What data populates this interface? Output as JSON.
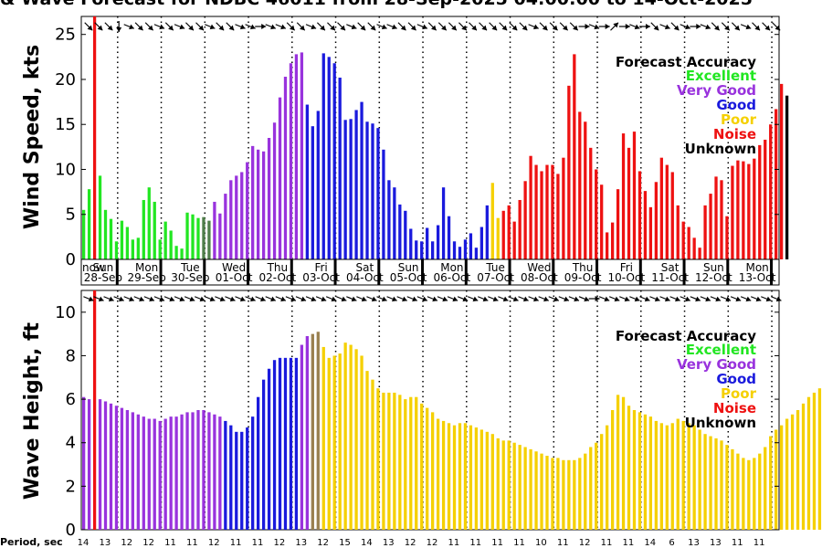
{
  "title": "& Wave Forecast for NDBC 46011 from 28-Sep-2025 04:00:00 to 14-Oct-2025",
  "accuracy_colors": {
    "Excellent": "#22e622",
    "Very Good": "#9933dd",
    "Good": "#1a1add",
    "Poor": "#f5d000",
    "Noise": "#ee1111",
    "Unknown": "#000000",
    "Olive": "#4f7f4a",
    "Purple": "#6a2ec0",
    "Brown": "#9a8050"
  },
  "legend": {
    "title": "Forecast Accuracy",
    "entries": [
      "Excellent",
      "Very Good",
      "Good",
      "Poor",
      "Noise",
      "Unknown"
    ]
  },
  "now_label": "now",
  "day_labels": [
    {
      "dow": "Sun",
      "date": "28-Sep"
    },
    {
      "dow": "Mon",
      "date": "29-Sep"
    },
    {
      "dow": "Tue",
      "date": "30-Sep"
    },
    {
      "dow": "Wed",
      "date": "01-Oct"
    },
    {
      "dow": "Thu",
      "date": "02-Oct"
    },
    {
      "dow": "Fri",
      "date": "03-Oct"
    },
    {
      "dow": "Sat",
      "date": "04-Oct"
    },
    {
      "dow": "Sun",
      "date": "05-Oct"
    },
    {
      "dow": "Mon",
      "date": "06-Oct"
    },
    {
      "dow": "Tue",
      "date": "07-Oct"
    },
    {
      "dow": "Wed",
      "date": "08-Oct"
    },
    {
      "dow": "Thu",
      "date": "09-Oct"
    },
    {
      "dow": "Fri",
      "date": "10-Oct"
    },
    {
      "dow": "Sat",
      "date": "11-Oct"
    },
    {
      "dow": "Sun",
      "date": "12-Oct"
    },
    {
      "dow": "Mon",
      "date": "13-Oct"
    }
  ],
  "period_label": "Period, sec",
  "periods": [
    14,
    13,
    12,
    12,
    11,
    11,
    12,
    11,
    11,
    12,
    13,
    12,
    15,
    14,
    13,
    12,
    12,
    11,
    11,
    11,
    11,
    10,
    11,
    12,
    11,
    11,
    14,
    6,
    13,
    13,
    11,
    11
  ],
  "chart_data": [
    {
      "type": "bar",
      "ylabel": "Wind Speed, kts",
      "ylim": [
        0,
        27
      ],
      "yticks": [
        0,
        5,
        10,
        15,
        20,
        25
      ],
      "x_unit": "hours from 28-Sep 04:00",
      "xlim": [
        0,
        384
      ],
      "bar_step_hours": 3,
      "now_hours": 6,
      "values": [
        5.5,
        7.8,
        0,
        9.3,
        5.5,
        4.5,
        2.0,
        4.3,
        3.6,
        2.2,
        2.4,
        6.6,
        8.0,
        6.4,
        2.2,
        4.2,
        3.2,
        1.5,
        1.2,
        5.2,
        5.0,
        4.6,
        4.7,
        4.3,
        6.4,
        5.1,
        7.3,
        8.8,
        9.3,
        9.7,
        10.8,
        12.6,
        12.2,
        12.0,
        13.5,
        15.2,
        18.0,
        20.3,
        21.8,
        22.8,
        23.0,
        17.2,
        14.8,
        16.5,
        22.9,
        22.5,
        21.8,
        20.2,
        15.5,
        15.6,
        16.6,
        17.5,
        15.3,
        15.1,
        14.6,
        12.2,
        8.8,
        8.0,
        6.1,
        5.4,
        3.4,
        2.1,
        2.0,
        3.5,
        2.0,
        3.8,
        8.0,
        4.8,
        2.0,
        1.4,
        2.2,
        2.9,
        1.3,
        3.6,
        6.0,
        8.5,
        4.6,
        5.4,
        6.0,
        4.2,
        6.6,
        8.7,
        11.5,
        10.5,
        9.8,
        10.5,
        10.5,
        9.5,
        11.3,
        19.3,
        22.8,
        16.4,
        15.3,
        12.4,
        10.0,
        8.3,
        3.0,
        4.1,
        7.8,
        14.0,
        12.4,
        14.2,
        9.8,
        7.6,
        5.8,
        8.6,
        11.3,
        10.5,
        9.7,
        6.0,
        4.2,
        3.6,
        2.4,
        1.3,
        6.0,
        7.3,
        9.2,
        8.8,
        4.8,
        10.4,
        11.0,
        10.9,
        10.6,
        11.2,
        12.7,
        13.3,
        15.0,
        16.7,
        19.5,
        18.2
      ],
      "colors": [
        "G",
        "G",
        "R",
        "G",
        "G",
        "G",
        "G",
        "G",
        "G",
        "G",
        "G",
        "G",
        "G",
        "G",
        "G",
        "G",
        "G",
        "G",
        "G",
        "G",
        "G",
        "G",
        "O",
        "O",
        "V",
        "V",
        "V",
        "V",
        "V",
        "V",
        "V",
        "V",
        "V",
        "V",
        "V",
        "V",
        "V",
        "V",
        "V",
        "V",
        "V",
        "B",
        "B",
        "B",
        "B",
        "B",
        "B",
        "B",
        "B",
        "B",
        "B",
        "B",
        "B",
        "B",
        "B",
        "B",
        "B",
        "B",
        "B",
        "B",
        "B",
        "B",
        "B",
        "B",
        "B",
        "B",
        "B",
        "B",
        "B",
        "B",
        "B",
        "B",
        "B",
        "B",
        "B",
        "P",
        "P",
        "R",
        "R",
        "R",
        "R",
        "R",
        "R",
        "R",
        "R",
        "R",
        "R",
        "R",
        "R",
        "R",
        "R",
        "R",
        "R",
        "R",
        "R",
        "R",
        "R",
        "R",
        "R",
        "R",
        "R",
        "R",
        "R",
        "R",
        "R",
        "R",
        "R",
        "R",
        "R",
        "R",
        "R",
        "R",
        "R",
        "R",
        "R",
        "R",
        "R",
        "R",
        "R",
        "R",
        "R",
        "R",
        "R",
        "R",
        "R",
        "R",
        "R",
        "R",
        "R"
      ],
      "direction_arrows_deg": [
        135,
        135,
        135,
        180,
        112,
        135,
        135,
        112,
        135,
        112,
        135,
        135,
        112,
        135,
        135,
        112,
        112,
        90,
        112,
        112,
        135,
        135,
        112,
        135,
        135,
        135,
        112,
        135,
        135,
        112,
        112,
        135,
        135,
        112,
        135,
        135,
        135,
        135,
        135,
        135,
        135,
        135,
        135,
        135,
        112,
        135,
        135,
        135,
        135,
        90,
        112,
        90,
        45,
        90,
        112,
        90,
        135,
        112,
        135,
        112,
        90,
        112,
        135,
        135,
        135,
        112,
        135,
        135,
        135
      ],
      "noise_spike": 27
    },
    {
      "type": "bar",
      "ylabel": "Wave Height, ft",
      "ylim": [
        0,
        11
      ],
      "yticks": [
        0,
        2,
        4,
        6,
        8,
        10
      ],
      "x_unit": "hours from 28-Sep 04:00",
      "xlim": [
        0,
        384
      ],
      "bar_step_hours": 3,
      "now_hours": 6,
      "values": [
        6.1,
        6.0,
        0,
        6.0,
        5.9,
        5.8,
        5.7,
        5.6,
        5.5,
        5.4,
        5.3,
        5.2,
        5.1,
        5.1,
        5.0,
        5.1,
        5.2,
        5.2,
        5.3,
        5.4,
        5.4,
        5.5,
        5.5,
        5.4,
        5.3,
        5.2,
        5.0,
        4.8,
        4.5,
        4.5,
        4.7,
        5.2,
        6.1,
        6.9,
        7.4,
        7.8,
        7.9,
        7.9,
        7.9,
        7.9,
        8.5,
        8.9,
        9.0,
        9.1,
        8.4,
        7.9,
        8.0,
        8.1,
        8.6,
        8.5,
        8.3,
        8.0,
        7.3,
        6.9,
        6.5,
        6.3,
        6.3,
        6.3,
        6.2,
        6.0,
        6.1,
        6.1,
        5.8,
        5.6,
        5.4,
        5.1,
        5.0,
        4.9,
        4.8,
        4.9,
        4.9,
        4.8,
        4.7,
        4.6,
        4.5,
        4.4,
        4.2,
        4.1,
        4.1,
        4.0,
        3.9,
        3.8,
        3.7,
        3.6,
        3.5,
        3.4,
        3.3,
        3.3,
        3.2,
        3.2,
        3.2,
        3.3,
        3.5,
        3.8,
        4.0,
        4.4,
        4.8,
        5.5,
        6.2,
        6.1,
        5.7,
        5.5,
        5.4,
        5.3,
        5.2,
        5.0,
        4.9,
        4.8,
        4.9,
        5.1,
        5.0,
        4.9,
        4.8,
        4.6,
        4.4,
        4.3,
        4.2,
        4.1,
        3.9,
        3.7,
        3.5,
        3.3,
        3.2,
        3.3,
        3.5,
        3.8,
        4.3,
        4.6,
        4.8,
        5.1,
        5.3,
        5.5,
        5.8,
        6.1,
        6.3,
        6.5,
        7.0,
        6.6
      ],
      "colors": [
        "V",
        "V",
        "R",
        "V",
        "V",
        "V",
        "V",
        "V",
        "V",
        "V",
        "V",
        "V",
        "V",
        "V",
        "V",
        "V",
        "V",
        "V",
        "V",
        "V",
        "V",
        "V",
        "V",
        "V",
        "V",
        "V",
        "B",
        "B",
        "B",
        "B",
        "B",
        "B",
        "B",
        "B",
        "B",
        "B",
        "B",
        "B",
        "B",
        "B",
        "V",
        "V",
        "W",
        "W",
        "P",
        "P",
        "P",
        "P",
        "P",
        "P",
        "P",
        "P",
        "P",
        "P",
        "P",
        "P",
        "P",
        "P",
        "P",
        "P",
        "P",
        "P",
        "P",
        "P",
        "P",
        "P",
        "P",
        "P",
        "P",
        "P",
        "P",
        "P",
        "P",
        "P",
        "P",
        "P",
        "P",
        "P",
        "P",
        "P",
        "P",
        "P",
        "P",
        "P",
        "P",
        "P",
        "P",
        "P",
        "P",
        "P",
        "P",
        "P",
        "P",
        "P",
        "P",
        "P",
        "P",
        "P",
        "P",
        "P",
        "P",
        "P",
        "P",
        "P",
        "P",
        "P",
        "P",
        "P",
        "P",
        "P",
        "P",
        "P",
        "P",
        "P",
        "P",
        "P",
        "P",
        "P",
        "P",
        "P",
        "P",
        "P",
        "P",
        "P",
        "P",
        "P",
        "P",
        "P",
        "P",
        "P",
        "P",
        "P",
        "P",
        "P",
        "P",
        "P",
        "P",
        "P",
        "P",
        "P"
      ],
      "direction_arrows_deg": [
        112,
        112,
        112,
        112,
        112,
        112,
        112,
        112,
        112,
        112,
        112,
        112,
        112,
        112,
        112,
        112,
        112,
        112,
        112,
        112,
        112,
        112,
        112,
        112,
        112,
        112,
        112,
        112,
        112,
        112,
        112,
        112,
        112,
        112,
        112,
        112,
        112,
        112,
        112,
        112,
        112,
        112,
        112,
        112,
        112,
        112,
        112,
        112,
        112,
        112,
        90,
        112,
        112,
        112,
        112,
        112,
        112,
        112,
        112,
        112,
        112,
        112,
        112,
        112,
        112,
        112,
        112,
        112,
        112
      ],
      "noise_spike": 11
    }
  ]
}
